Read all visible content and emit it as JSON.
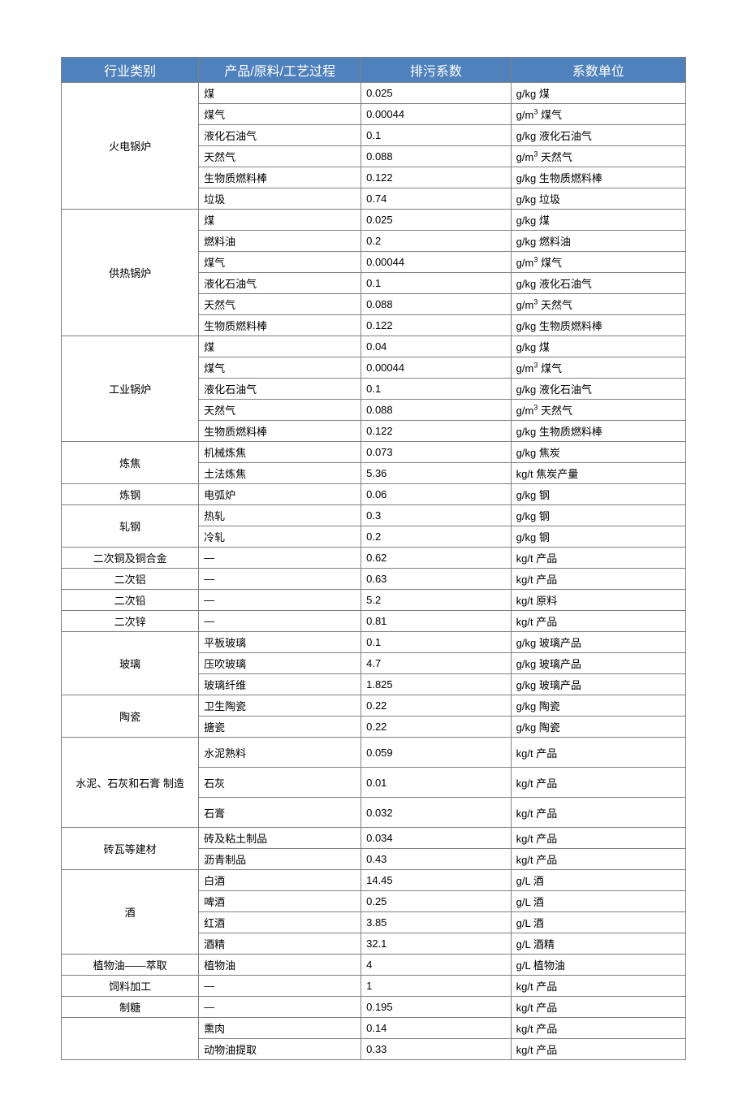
{
  "headers": [
    "行业类别",
    "产品/原料/工艺过程",
    "排污系数",
    "系数单位"
  ],
  "header_bg": "#4f81bd",
  "header_fg": "#ffffff",
  "col_widths": [
    "22%",
    "26%",
    "24%",
    "28%"
  ],
  "groups": [
    {
      "category": "火电锅炉",
      "rows": [
        {
          "product": "煤",
          "coef": "0.025",
          "unit": "g/kg 煤"
        },
        {
          "product": "煤气",
          "coef": "0.00044",
          "unit": "g/m³ 煤气"
        },
        {
          "product": "液化石油气",
          "coef": "0.1",
          "unit": "g/kg 液化石油气"
        },
        {
          "product": "天然气",
          "coef": "0.088",
          "unit": "g/m³ 天然气"
        },
        {
          "product": "生物质燃料棒",
          "coef": "0.122",
          "unit": "g/kg 生物质燃料棒"
        },
        {
          "product": "垃圾",
          "coef": "0.74",
          "unit": "g/kg 垃圾"
        }
      ]
    },
    {
      "category": "供热锅炉",
      "rows": [
        {
          "product": "煤",
          "coef": "0.025",
          "unit": "g/kg 煤"
        },
        {
          "product": "燃料油",
          "coef": "0.2",
          "unit": "g/kg 燃料油"
        },
        {
          "product": "煤气",
          "coef": "0.00044",
          "unit": "g/m³ 煤气"
        },
        {
          "product": "液化石油气",
          "coef": "0.1",
          "unit": "g/kg 液化石油气"
        },
        {
          "product": "天然气",
          "coef": "0.088",
          "unit": "g/m³ 天然气"
        },
        {
          "product": "生物质燃料棒",
          "coef": "0.122",
          "unit": "g/kg 生物质燃料棒"
        }
      ]
    },
    {
      "category": "工业锅炉",
      "rows": [
        {
          "product": "煤",
          "coef": "0.04",
          "unit": "g/kg 煤"
        },
        {
          "product": "煤气",
          "coef": "0.00044",
          "unit": "g/m³ 煤气"
        },
        {
          "product": "液化石油气",
          "coef": "0.1",
          "unit": "g/kg 液化石油气"
        },
        {
          "product": "天然气",
          "coef": "0.088",
          "unit": "g/m³ 天然气"
        },
        {
          "product": "生物质燃料棒",
          "coef": "0.122",
          "unit": "g/kg 生物质燃料棒"
        }
      ]
    },
    {
      "category": "炼焦",
      "rows": [
        {
          "product": "机械炼焦",
          "coef": "0.073",
          "unit": "g/kg 焦炭"
        },
        {
          "product": "土法炼焦",
          "coef": "5.36",
          "unit": "kg/t 焦炭产量"
        }
      ]
    },
    {
      "category": "炼钢",
      "rows": [
        {
          "product": "电弧炉",
          "coef": "0.06",
          "unit": "g/kg 钢"
        }
      ]
    },
    {
      "category": "轧钢",
      "rows": [
        {
          "product": "热轧",
          "coef": "0.3",
          "unit": "g/kg 钢"
        },
        {
          "product": "冷轧",
          "coef": "0.2",
          "unit": "g/kg 钢"
        }
      ]
    },
    {
      "category": "二次铜及铜合金",
      "rows": [
        {
          "product": "—",
          "coef": "0.62",
          "unit": "kg/t 产品"
        }
      ]
    },
    {
      "category": "二次铝",
      "rows": [
        {
          "product": "—",
          "coef": "0.63",
          "unit": "kg/t 产品"
        }
      ]
    },
    {
      "category": "二次铅",
      "rows": [
        {
          "product": "—",
          "coef": "5.2",
          "unit": "kg/t 原料"
        }
      ]
    },
    {
      "category": "二次锌",
      "rows": [
        {
          "product": "—",
          "coef": "0.81",
          "unit": "kg/t 产品"
        }
      ]
    },
    {
      "category": "玻璃",
      "rows": [
        {
          "product": "平板玻璃",
          "coef": "0.1",
          "unit": "g/kg 玻璃产品"
        },
        {
          "product": "压吹玻璃",
          "coef": "4.7",
          "unit": "g/kg 玻璃产品"
        },
        {
          "product": "玻璃纤维",
          "coef": "1.825",
          "unit": "g/kg 玻璃产品"
        }
      ]
    },
    {
      "category": "陶瓷",
      "rows": [
        {
          "product": "卫生陶瓷",
          "coef": "0.22",
          "unit": "g/kg 陶瓷"
        },
        {
          "product": "搪瓷",
          "coef": "0.22",
          "unit": "g/kg 陶瓷"
        }
      ]
    },
    {
      "category": "水泥、石灰和石膏 制造",
      "tall": true,
      "rows": [
        {
          "product": "水泥熟料",
          "coef": "0.059",
          "unit": "kg/t 产品"
        },
        {
          "product": "石灰",
          "coef": "0.01",
          "unit": "kg/t 产品"
        },
        {
          "product": "石膏",
          "coef": "0.032",
          "unit": "kg/t 产品"
        }
      ]
    },
    {
      "category": "砖瓦等建材",
      "rows": [
        {
          "product": "砖及粘土制品",
          "coef": "0.034",
          "unit": "kg/t 产品"
        },
        {
          "product": "沥青制品",
          "coef": "0.43",
          "unit": "kg/t 产品"
        }
      ]
    },
    {
      "category": "酒",
      "rows": [
        {
          "product": "白酒",
          "coef": "14.45",
          "unit": "g/L 酒"
        },
        {
          "product": "啤酒",
          "coef": "0.25",
          "unit": "g/L 酒"
        },
        {
          "product": "红酒",
          "coef": "3.85",
          "unit": "g/L 酒"
        },
        {
          "product": "酒精",
          "coef": "32.1",
          "unit": "g/L 酒精"
        }
      ]
    },
    {
      "category": "植物油——萃取",
      "rows": [
        {
          "product": "植物油",
          "coef": "4",
          "unit": "g/L 植物油"
        }
      ]
    },
    {
      "category": "饲料加工",
      "rows": [
        {
          "product": "—",
          "coef": "1",
          "unit": "kg/t 产品"
        }
      ]
    },
    {
      "category": "制糖",
      "rows": [
        {
          "product": "—",
          "coef": "0.195",
          "unit": "kg/t 产品"
        }
      ]
    },
    {
      "category": "",
      "rows": [
        {
          "product": "熏肉",
          "coef": "0.14",
          "unit": "kg/t 产品"
        },
        {
          "product": "动物油提取",
          "coef": "0.33",
          "unit": "kg/t 产品"
        }
      ]
    }
  ]
}
